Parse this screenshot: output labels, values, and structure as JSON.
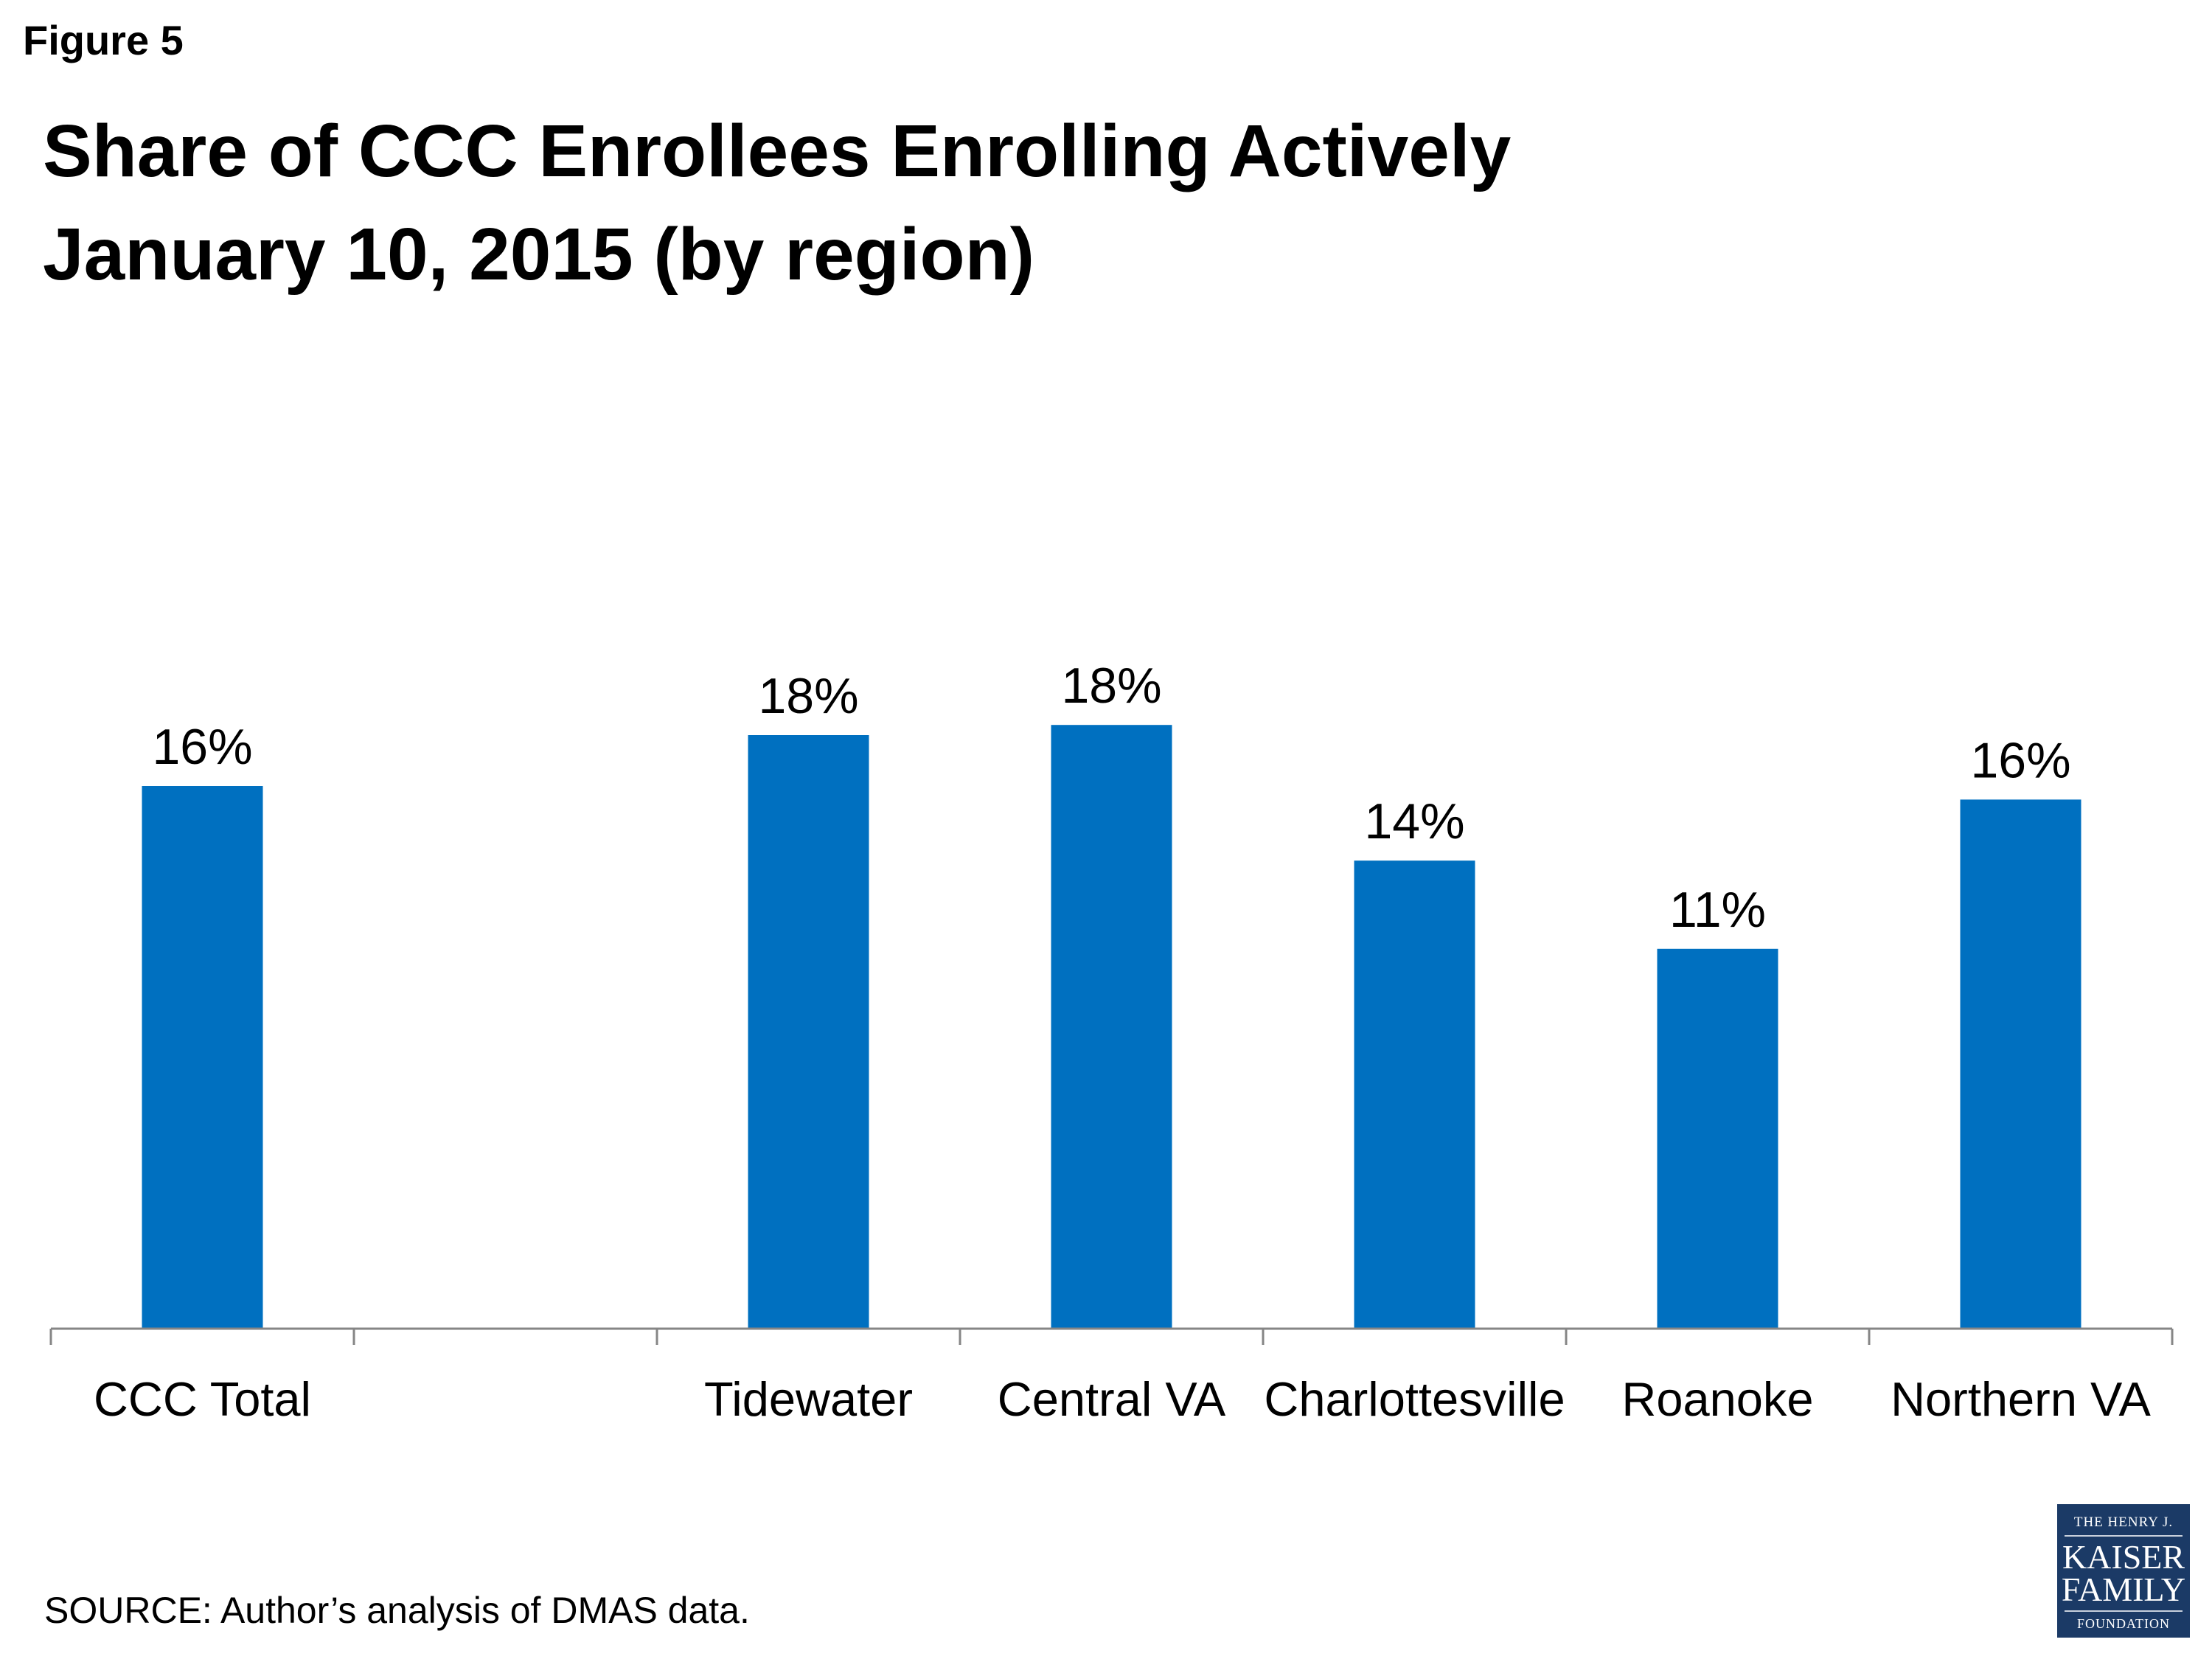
{
  "figure_label": "Figure 5",
  "title_line1": "Share of CCC Enrollees Enrolling Actively",
  "title_line2": "January 10, 2015 (by region)",
  "source": "SOURCE: Author’s analysis of DMAS data.",
  "logo": {
    "line1": "THE HENRY J.",
    "line2": "KAISER",
    "line3": "FAMILY",
    "line4": "FOUNDATION"
  },
  "chart_data": {
    "type": "bar",
    "categories": [
      "CCC Total",
      "",
      "Tidewater",
      "Central VA",
      "Charlottesville",
      "Roanoke",
      "Northern VA"
    ],
    "values": [
      16.0,
      null,
      17.5,
      17.8,
      13.8,
      11.2,
      15.6
    ],
    "data_labels": [
      "16%",
      "",
      "18%",
      "18%",
      "14%",
      "11%",
      "16%"
    ],
    "ylim": [
      0,
      23
    ],
    "grid": false,
    "legend": "none",
    "bar_color": "#0070C0"
  }
}
